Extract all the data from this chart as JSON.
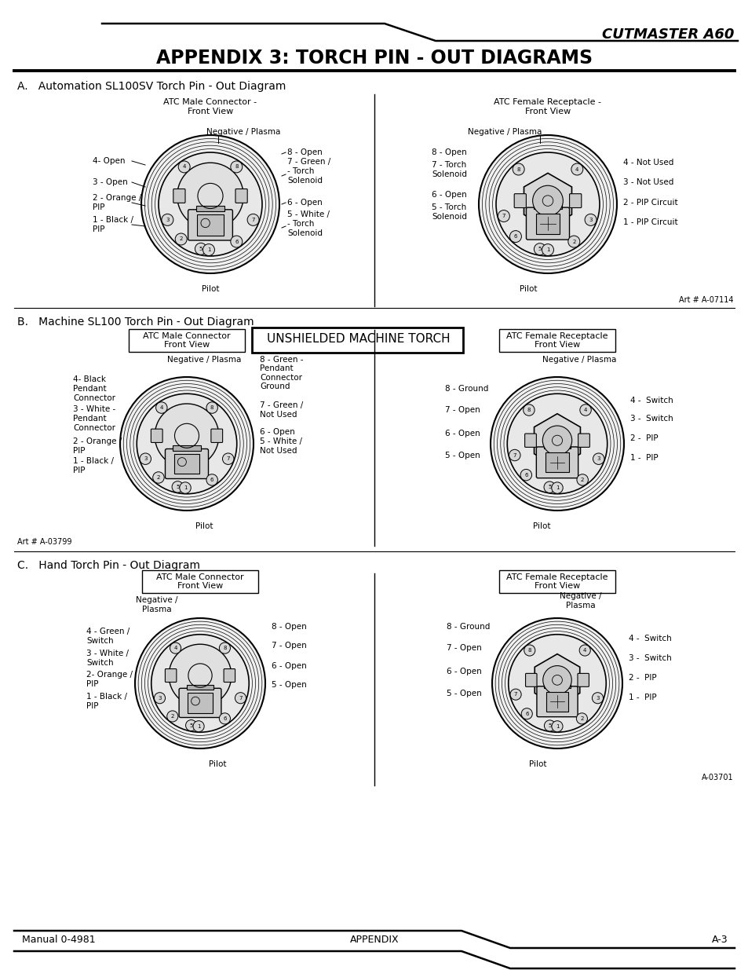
{
  "title_brand": "CUTMASTER A60",
  "title_main": "APPENDIX 3: TORCH PIN - OUT DIAGRAMS",
  "section_a_title": "A.   Automation SL100SV Torch Pin - Out Diagram",
  "section_b_title": "B.   Machine SL100 Torch Pin - Out Diagram",
  "section_c_title": "C.   Hand Torch Pin - Out Diagram",
  "footer_left": "Manual 0-4981",
  "footer_center": "APPENDIX",
  "footer_right": "A-3",
  "background": "#ffffff",
  "text_color": "#000000",
  "art_a": "Art # A-07114",
  "art_b": "Art # A-03799",
  "art_c": "A-03701"
}
